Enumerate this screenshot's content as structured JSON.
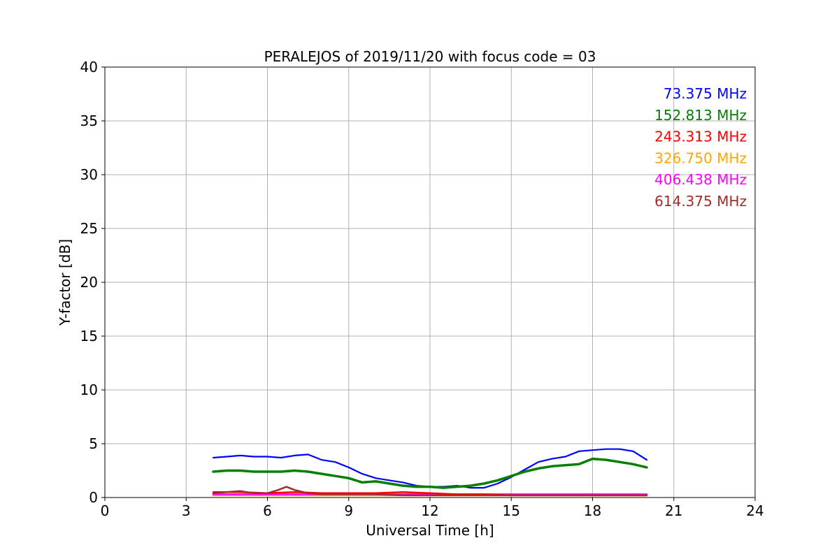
{
  "chart_data": {
    "type": "line",
    "title": "PERALEJOS of 2019/11/20 with focus code = 03",
    "xlabel": "Universal Time [h]",
    "ylabel": "Y-factor [dB]",
    "xlim": [
      0,
      24
    ],
    "ylim": [
      0,
      40
    ],
    "xticks": [
      0,
      3,
      6,
      9,
      12,
      15,
      18,
      21,
      24
    ],
    "xtick_labels": [
      "0",
      "3",
      "6",
      "9",
      "12",
      "15",
      "18",
      "21",
      "24"
    ],
    "yticks": [
      0,
      5,
      10,
      15,
      20,
      25,
      30,
      35,
      40
    ],
    "ytick_labels": [
      "0",
      "5",
      "10",
      "15",
      "20",
      "25",
      "30",
      "35",
      "40"
    ],
    "grid": true,
    "legend_position": "top-right",
    "series": [
      {
        "name": "73.375 MHz",
        "color": "#0000ff",
        "x": [
          4.0,
          4.5,
          5.0,
          5.5,
          6.0,
          6.5,
          7.0,
          7.5,
          8.0,
          8.5,
          9.0,
          9.5,
          10.0,
          10.5,
          11.0,
          11.5,
          12.0,
          12.5,
          13.0,
          13.5,
          14.0,
          14.5,
          15.0,
          15.5,
          16.0,
          16.5,
          17.0,
          17.5,
          18.0,
          18.5,
          19.0,
          19.5,
          20.0
        ],
        "values": [
          3.7,
          3.8,
          3.9,
          3.8,
          3.8,
          3.7,
          3.9,
          4.0,
          3.5,
          3.3,
          2.8,
          2.2,
          1.8,
          1.6,
          1.4,
          1.1,
          1.0,
          1.0,
          1.1,
          0.9,
          0.9,
          1.3,
          1.9,
          2.6,
          3.3,
          3.6,
          3.8,
          4.3,
          4.4,
          4.5,
          4.5,
          4.3,
          3.5
        ]
      },
      {
        "name": "152.813 MHz",
        "color": "#008000",
        "x": [
          4.0,
          4.5,
          5.0,
          5.5,
          6.0,
          6.5,
          7.0,
          7.5,
          8.0,
          8.5,
          9.0,
          9.5,
          10.0,
          10.5,
          11.0,
          11.5,
          12.0,
          12.5,
          13.0,
          13.5,
          14.0,
          14.5,
          15.0,
          15.5,
          16.0,
          16.5,
          17.0,
          17.5,
          18.0,
          18.5,
          19.0,
          19.5,
          20.0
        ],
        "values": [
          2.4,
          2.5,
          2.5,
          2.4,
          2.4,
          2.4,
          2.5,
          2.4,
          2.2,
          2.0,
          1.8,
          1.4,
          1.5,
          1.3,
          1.1,
          1.0,
          1.0,
          0.9,
          1.0,
          1.1,
          1.3,
          1.6,
          2.0,
          2.4,
          2.7,
          2.9,
          3.0,
          3.1,
          3.6,
          3.5,
          3.3,
          3.1,
          2.8
        ]
      },
      {
        "name": "243.313 MHz",
        "color": "#ff0000",
        "x": [
          4.0,
          5.0,
          6.0,
          7.0,
          8.0,
          9.0,
          10.0,
          11.0,
          12.0,
          13.0,
          14.0,
          15.0,
          16.0,
          17.0,
          18.0,
          19.0,
          20.0
        ],
        "values": [
          0.5,
          0.5,
          0.4,
          0.5,
          0.4,
          0.4,
          0.4,
          0.5,
          0.4,
          0.3,
          0.3,
          0.2,
          0.2,
          0.2,
          0.2,
          0.2,
          0.2
        ]
      },
      {
        "name": "326.750 MHz",
        "color": "#ffa500",
        "x": [
          4.0,
          6.0,
          8.0,
          10.0,
          12.0,
          14.0,
          16.0,
          18.0,
          20.0
        ],
        "values": [
          0.2,
          0.2,
          0.2,
          0.2,
          0.2,
          0.2,
          0.2,
          0.2,
          0.2
        ]
      },
      {
        "name": "406.438 MHz",
        "color": "#ff00ff",
        "x": [
          4.0,
          6.0,
          8.0,
          10.0,
          12.0,
          14.0,
          16.0,
          18.0,
          20.0
        ],
        "values": [
          0.3,
          0.3,
          0.3,
          0.3,
          0.3,
          0.3,
          0.3,
          0.3,
          0.3
        ]
      },
      {
        "name": "614.375 MHz",
        "color": "#a52a2a",
        "x": [
          4.0,
          4.5,
          5.0,
          5.5,
          6.0,
          6.4,
          6.7,
          7.0,
          7.5,
          8.0,
          9.0,
          10.0,
          11.0,
          12.0,
          13.0,
          14.0,
          15.0,
          16.0,
          17.0,
          18.0,
          19.0,
          20.0
        ],
        "values": [
          0.4,
          0.5,
          0.6,
          0.4,
          0.4,
          0.7,
          1.0,
          0.7,
          0.4,
          0.3,
          0.3,
          0.3,
          0.2,
          0.2,
          0.2,
          0.2,
          0.2,
          0.2,
          0.2,
          0.2,
          0.2,
          0.2
        ]
      }
    ]
  }
}
